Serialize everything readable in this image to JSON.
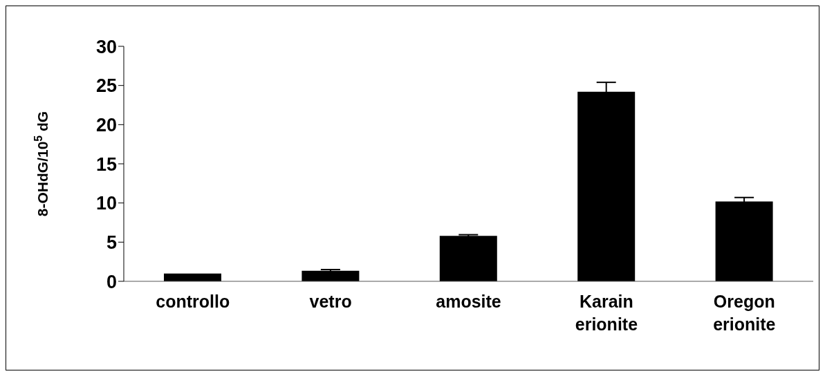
{
  "chart_data": {
    "type": "bar",
    "ylabel": "8-OHdG/10$^{5}$ dG",
    "categories": [
      "controllo",
      "vetro",
      "amosite",
      "Karain erionite",
      "Oregon erionite"
    ],
    "values": [
      1.0,
      1.35,
      5.8,
      24.2,
      10.2
    ],
    "errors": [
      null,
      0.15,
      0.15,
      1.2,
      0.5
    ],
    "color": "#000000",
    "ylim": [
      0,
      30
    ],
    "yticks": [
      0,
      5,
      10,
      15,
      20,
      25,
      30
    ],
    "grid": false,
    "legend": false
  }
}
